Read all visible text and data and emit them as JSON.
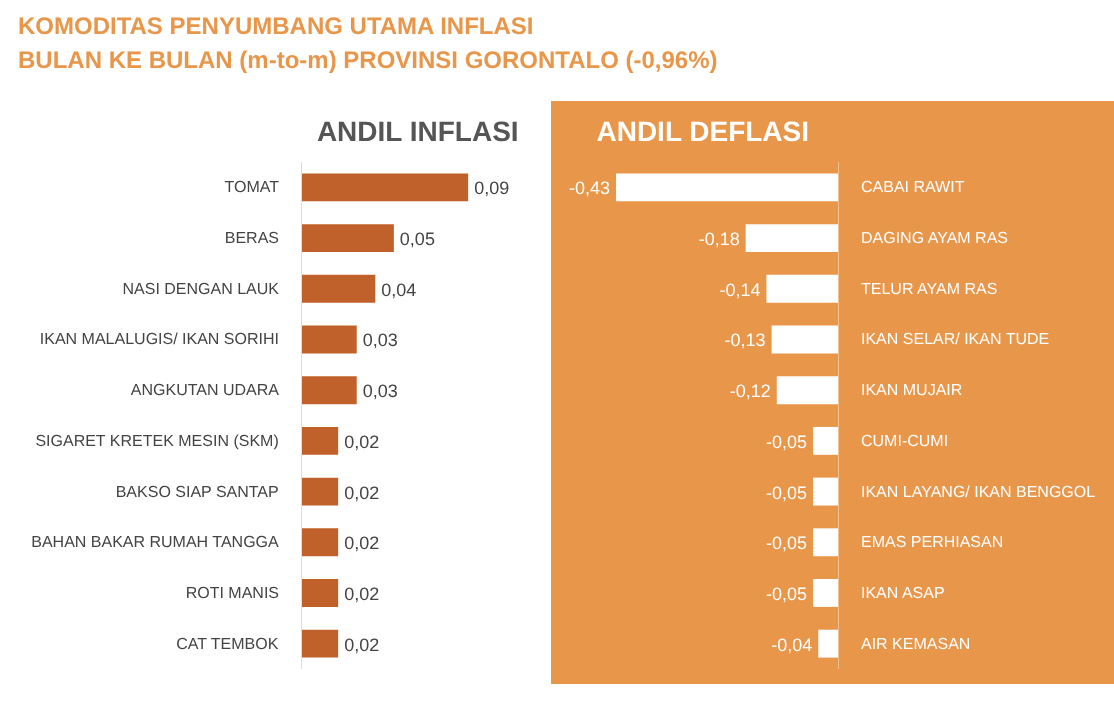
{
  "chart_data": [
    {
      "type": "bar",
      "orientation": "horizontal",
      "title": "ANDIL INFLASI",
      "annotations": [
        "KOMODITAS PENYUMBANG UTAMA INFLASI",
        "BULAN KE BULAN (m-to-m) PROVINSI GORONTALO (-0,96%)"
      ],
      "categories": [
        "TOMAT",
        "BERAS",
        "NASI DENGAN LAUK",
        "IKAN MALALUGIS/ IKAN SORIHI",
        "ANGKUTAN UDARA",
        "SIGARET KRETEK MESIN (SKM)",
        "BAKSO SIAP SANTAP",
        "BAHAN BAKAR RUMAH TANGGA",
        "ROTI MANIS",
        "CAT TEMBOK"
      ],
      "values": [
        0.09,
        0.05,
        0.04,
        0.03,
        0.03,
        0.02,
        0.02,
        0.02,
        0.02,
        0.02
      ],
      "value_labels": [
        "0,09",
        "0,05",
        "0,04",
        "0,03",
        "0,03",
        "0,02",
        "0,02",
        "0,02",
        "0,02",
        "0,02"
      ],
      "color": "#c0602a",
      "tick_labels": "y"
    },
    {
      "type": "bar",
      "orientation": "horizontal",
      "title": "ANDIL DEFLASI",
      "categories": [
        "CABAI RAWIT",
        "DAGING AYAM RAS",
        "TELUR AYAM RAS",
        "IKAN SELAR/ IKAN TUDE",
        "IKAN MUJAIR",
        "CUMI-CUMI",
        "IKAN LAYANG/ IKAN BENGGOL",
        "EMAS PERHIASAN",
        "IKAN ASAP",
        "AIR KEMASAN"
      ],
      "values": [
        -0.43,
        -0.18,
        -0.14,
        -0.13,
        -0.12,
        -0.05,
        -0.05,
        -0.05,
        -0.05,
        -0.04
      ],
      "value_labels": [
        "-0,43",
        "-0,18",
        "-0,14",
        "-0,13",
        "-0,12",
        "-0,05",
        "-0,05",
        "-0,05",
        "-0,05",
        "-0,04"
      ],
      "color": "#ffffff",
      "tick_labels": "y"
    }
  ]
}
